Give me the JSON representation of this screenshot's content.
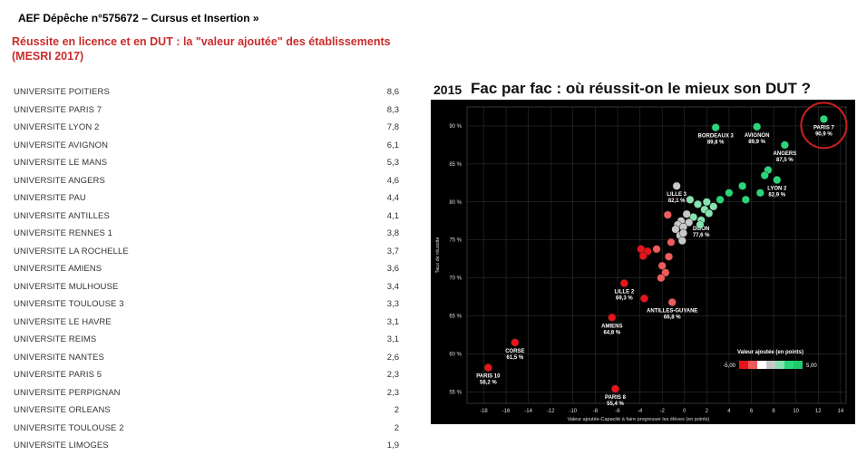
{
  "header": {
    "title": "AEF Dépêche n°575672 – Cursus et Insertion »",
    "subtitle": "Réussite en licence et en DUT : la \"valeur ajoutée\" des établissements (MESRI 2017)"
  },
  "ranking": [
    {
      "name": "UNIVERSITE POITIERS",
      "value": "8,6"
    },
    {
      "name": "UNIVERSITE PARIS 7",
      "value": "8,3"
    },
    {
      "name": "UNIVERSITE LYON 2",
      "value": "7,8"
    },
    {
      "name": "UNIVERSITE AVIGNON",
      "value": "6,1"
    },
    {
      "name": "UNIVERSITE LE MANS",
      "value": "5,3"
    },
    {
      "name": "UNIVERSITE ANGERS",
      "value": "4,6"
    },
    {
      "name": "UNIVERSITE PAU",
      "value": "4,4"
    },
    {
      "name": "UNIVERSITE ANTILLES",
      "value": "4,1"
    },
    {
      "name": "UNIVERSITE RENNES 1",
      "value": "3,8"
    },
    {
      "name": "UNIVERSITE LA ROCHELLE",
      "value": "3,7"
    },
    {
      "name": "UNIVERSITE AMIENS",
      "value": "3,6"
    },
    {
      "name": "UNIVERSITE MULHOUSE",
      "value": "3,4"
    },
    {
      "name": "UNIVERSITE TOULOUSE 3",
      "value": "3,3"
    },
    {
      "name": "UNIVERSITE LE HAVRE",
      "value": "3,1"
    },
    {
      "name": "UNIVERSITE REIMS",
      "value": "3,1"
    },
    {
      "name": "UNIVERSITE NANTES",
      "value": "2,6"
    },
    {
      "name": "UNIVERSITE PARIS 5",
      "value": "2,3"
    },
    {
      "name": "UNIVERSITE PERPIGNAN",
      "value": "2,3"
    },
    {
      "name": "UNIVERSITE ORLEANS",
      "value": "2"
    },
    {
      "name": "UNIVERSITE TOULOUSE 2",
      "value": "2"
    },
    {
      "name": "UNIVERSITE LIMOGES",
      "value": "1,9"
    }
  ],
  "chart_data": {
    "type": "scatter",
    "year": "2015",
    "title": "Fac par fac : où réussit-on le mieux son DUT ?",
    "xlabel": "Valeur ajoutée-Capacité à faire progresser les élèves  (en points)",
    "ylabel": "Taux de réussite",
    "xlim": [
      -19.5,
      14.5
    ],
    "ylim": [
      53.5,
      92.5
    ],
    "xticks": [
      -18,
      -16,
      -14,
      -12,
      -10,
      -8,
      -6,
      -4,
      -2,
      0,
      2,
      4,
      6,
      8,
      10,
      12,
      14
    ],
    "yticks": [
      55,
      60,
      65,
      70,
      75,
      80,
      85,
      90
    ],
    "ytick_suffix": " %",
    "background": "#000000",
    "highlight_color": "#cc1f1f",
    "legend": {
      "title": "Valeur ajoutée (en points)",
      "min_label": "-5,00",
      "max_label": "5,00",
      "position": "bottom-right"
    },
    "colors": [
      "#e8141a",
      "#ef5a5a",
      "#ffffff",
      "#c8c8c8",
      "#86e3b0",
      "#2ad67a"
    ],
    "points": [
      {
        "x": 12.5,
        "y": 90.9,
        "label": "PARIS 7",
        "value": "90,9 %",
        "c": 5,
        "highlight": true
      },
      {
        "x": 2.8,
        "y": 89.8,
        "label": "BORDEAUX 3",
        "value": "89,8 %",
        "c": 5
      },
      {
        "x": 6.5,
        "y": 89.9,
        "label": "AVIGNON",
        "value": "89,9 %",
        "c": 5
      },
      {
        "x": 9.0,
        "y": 87.5,
        "label": "ANGERS",
        "value": "87,5 %",
        "c": 5
      },
      {
        "x": 7.5,
        "y": 84.2,
        "c": 5
      },
      {
        "x": 7.2,
        "y": 83.5,
        "c": 5
      },
      {
        "x": 8.3,
        "y": 82.9,
        "label": "LYON 2",
        "value": "82,9 %",
        "c": 5
      },
      {
        "x": 5.2,
        "y": 82.1,
        "c": 5
      },
      {
        "x": 4.0,
        "y": 81.2,
        "c": 5
      },
      {
        "x": 6.8,
        "y": 81.2,
        "c": 5
      },
      {
        "x": 3.2,
        "y": 80.3,
        "c": 5
      },
      {
        "x": 5.5,
        "y": 80.3,
        "c": 5
      },
      {
        "x": 2.0,
        "y": 80.0,
        "c": 4
      },
      {
        "x": 0.5,
        "y": 80.3,
        "c": 4
      },
      {
        "x": 1.2,
        "y": 79.7,
        "c": 4
      },
      {
        "x": 2.6,
        "y": 79.4,
        "c": 4
      },
      {
        "x": 1.8,
        "y": 79.0,
        "c": 4
      },
      {
        "x": 2.2,
        "y": 78.5,
        "c": 4
      },
      {
        "x": 1.5,
        "y": 77.6,
        "label": "DIJON",
        "value": "77,6 %",
        "c": 4
      },
      {
        "x": 1.4,
        "y": 77.0,
        "c": 4
      },
      {
        "x": 0.8,
        "y": 78.0,
        "c": 4
      },
      {
        "x": -0.7,
        "y": 82.1,
        "label": "LILLE 3",
        "value": "82,1 %",
        "c": 3
      },
      {
        "x": 0.2,
        "y": 78.4,
        "c": 3
      },
      {
        "x": -0.3,
        "y": 77.5,
        "c": 3
      },
      {
        "x": -0.6,
        "y": 77.0,
        "c": 3
      },
      {
        "x": 0.4,
        "y": 77.3,
        "c": 3
      },
      {
        "x": -0.1,
        "y": 76.7,
        "c": 3
      },
      {
        "x": -0.8,
        "y": 76.4,
        "c": 3
      },
      {
        "x": -0.4,
        "y": 75.6,
        "c": 3
      },
      {
        "x": -0.1,
        "y": 75.9,
        "c": 3
      },
      {
        "x": -0.2,
        "y": 74.9,
        "c": 3
      },
      {
        "x": -1.5,
        "y": 78.3,
        "c": 1
      },
      {
        "x": -1.2,
        "y": 74.7,
        "c": 1
      },
      {
        "x": -2.5,
        "y": 73.8,
        "c": 1
      },
      {
        "x": -3.3,
        "y": 73.5,
        "c": 0
      },
      {
        "x": -3.9,
        "y": 73.8,
        "c": 0
      },
      {
        "x": -3.7,
        "y": 72.9,
        "c": 0
      },
      {
        "x": -1.4,
        "y": 72.8,
        "c": 1
      },
      {
        "x": -2.0,
        "y": 71.6,
        "c": 1
      },
      {
        "x": -1.7,
        "y": 70.7,
        "c": 1
      },
      {
        "x": -2.1,
        "y": 70.0,
        "c": 1
      },
      {
        "x": -5.4,
        "y": 69.3,
        "label": "LILLE 2",
        "value": "69,3 %",
        "c": 0
      },
      {
        "x": -3.6,
        "y": 67.3,
        "c": 0
      },
      {
        "x": -1.1,
        "y": 66.8,
        "label": "ANTILLES-GUYANE",
        "value": "66,8 %",
        "c": 1
      },
      {
        "x": -6.5,
        "y": 64.8,
        "label": "AMIENS",
        "value": "64,8 %",
        "c": 0
      },
      {
        "x": -15.2,
        "y": 61.5,
        "label": "CORSE",
        "value": "61,5 %",
        "c": 0
      },
      {
        "x": -17.6,
        "y": 58.2,
        "label": "PARIS 10",
        "value": "58,2 %",
        "c": 0
      },
      {
        "x": -6.2,
        "y": 55.4,
        "label": "PARIS 8",
        "value": "55,4 %",
        "c": 0
      }
    ]
  }
}
